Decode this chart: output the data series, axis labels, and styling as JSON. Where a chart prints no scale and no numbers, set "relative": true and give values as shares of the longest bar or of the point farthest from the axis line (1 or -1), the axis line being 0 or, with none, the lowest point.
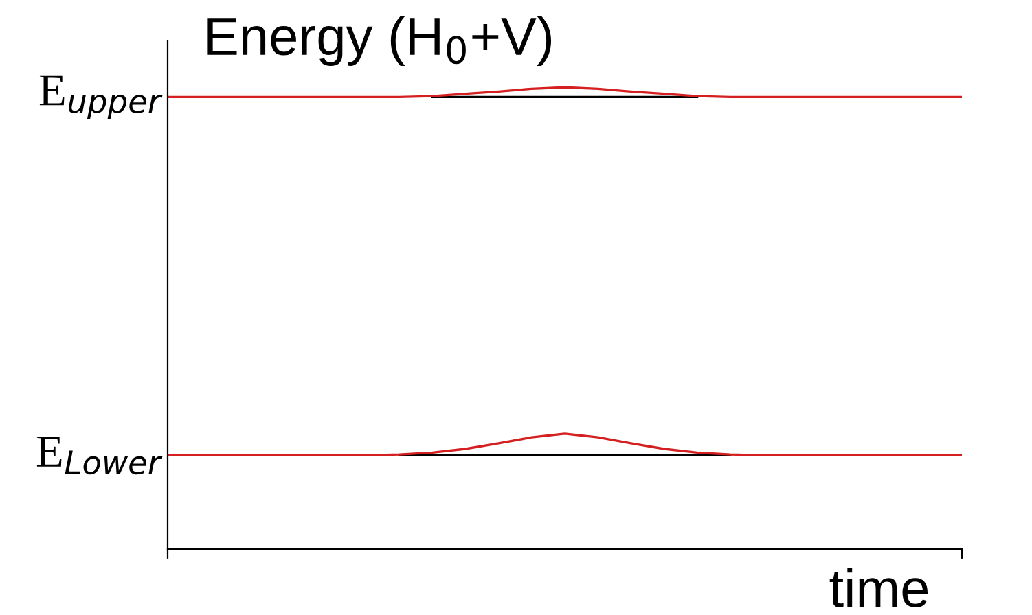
{
  "chart_data": {
    "type": "line",
    "title": "Energy (H$_{0}$+V)",
    "xlabel": "time",
    "relative": true,
    "categories": [
      null,
      null,
      null,
      null,
      null,
      null,
      null,
      null,
      null,
      null,
      null,
      null,
      null,
      null,
      null,
      null,
      null,
      null,
      null,
      null,
      null,
      null,
      null,
      null,
      null
    ],
    "series": [
      {
        "color": "#000000",
        "values": [
          null,
          null,
          null,
          null,
          null,
          null,
          null,
          null,
          0.979,
          0.979,
          0.979,
          0.979,
          0.979,
          0.979,
          0.979,
          0.979,
          0.979,
          null,
          null,
          null,
          null,
          null,
          null,
          null,
          null
        ]
      },
      {
        "color": "#000000",
        "values": [
          null,
          null,
          null,
          null,
          null,
          null,
          null,
          0.203,
          0.203,
          0.203,
          0.203,
          0.203,
          0.203,
          0.203,
          0.203,
          0.203,
          0.203,
          0.203,
          null,
          null,
          null,
          null,
          null,
          null,
          null
        ]
      },
      {
        "color": "#d42020",
        "values": [
          0.979,
          0.979,
          0.979,
          0.979,
          0.979,
          0.979,
          0.979,
          0.979,
          0.981,
          0.986,
          0.991,
          0.997,
          1,
          0.997,
          0.991,
          0.986,
          0.981,
          0.979,
          0.979,
          0.979,
          0.979,
          0.979,
          0.979,
          0.979,
          0.979
        ]
      },
      {
        "color": "#d42020",
        "values": [
          0.203,
          0.203,
          0.203,
          0.203,
          0.203,
          0.203,
          0.203,
          0.205,
          0.209,
          0.217,
          0.229,
          0.242,
          0.25,
          0.242,
          0.229,
          0.217,
          0.209,
          0.205,
          0.203,
          0.203,
          0.203,
          0.203,
          0.203,
          0.203,
          0.203
        ]
      }
    ],
    "annotations": [
      "E$_{upper}$",
      "E$_{Lower}$"
    ],
    "marker": "none",
    "line_style": "solid"
  }
}
